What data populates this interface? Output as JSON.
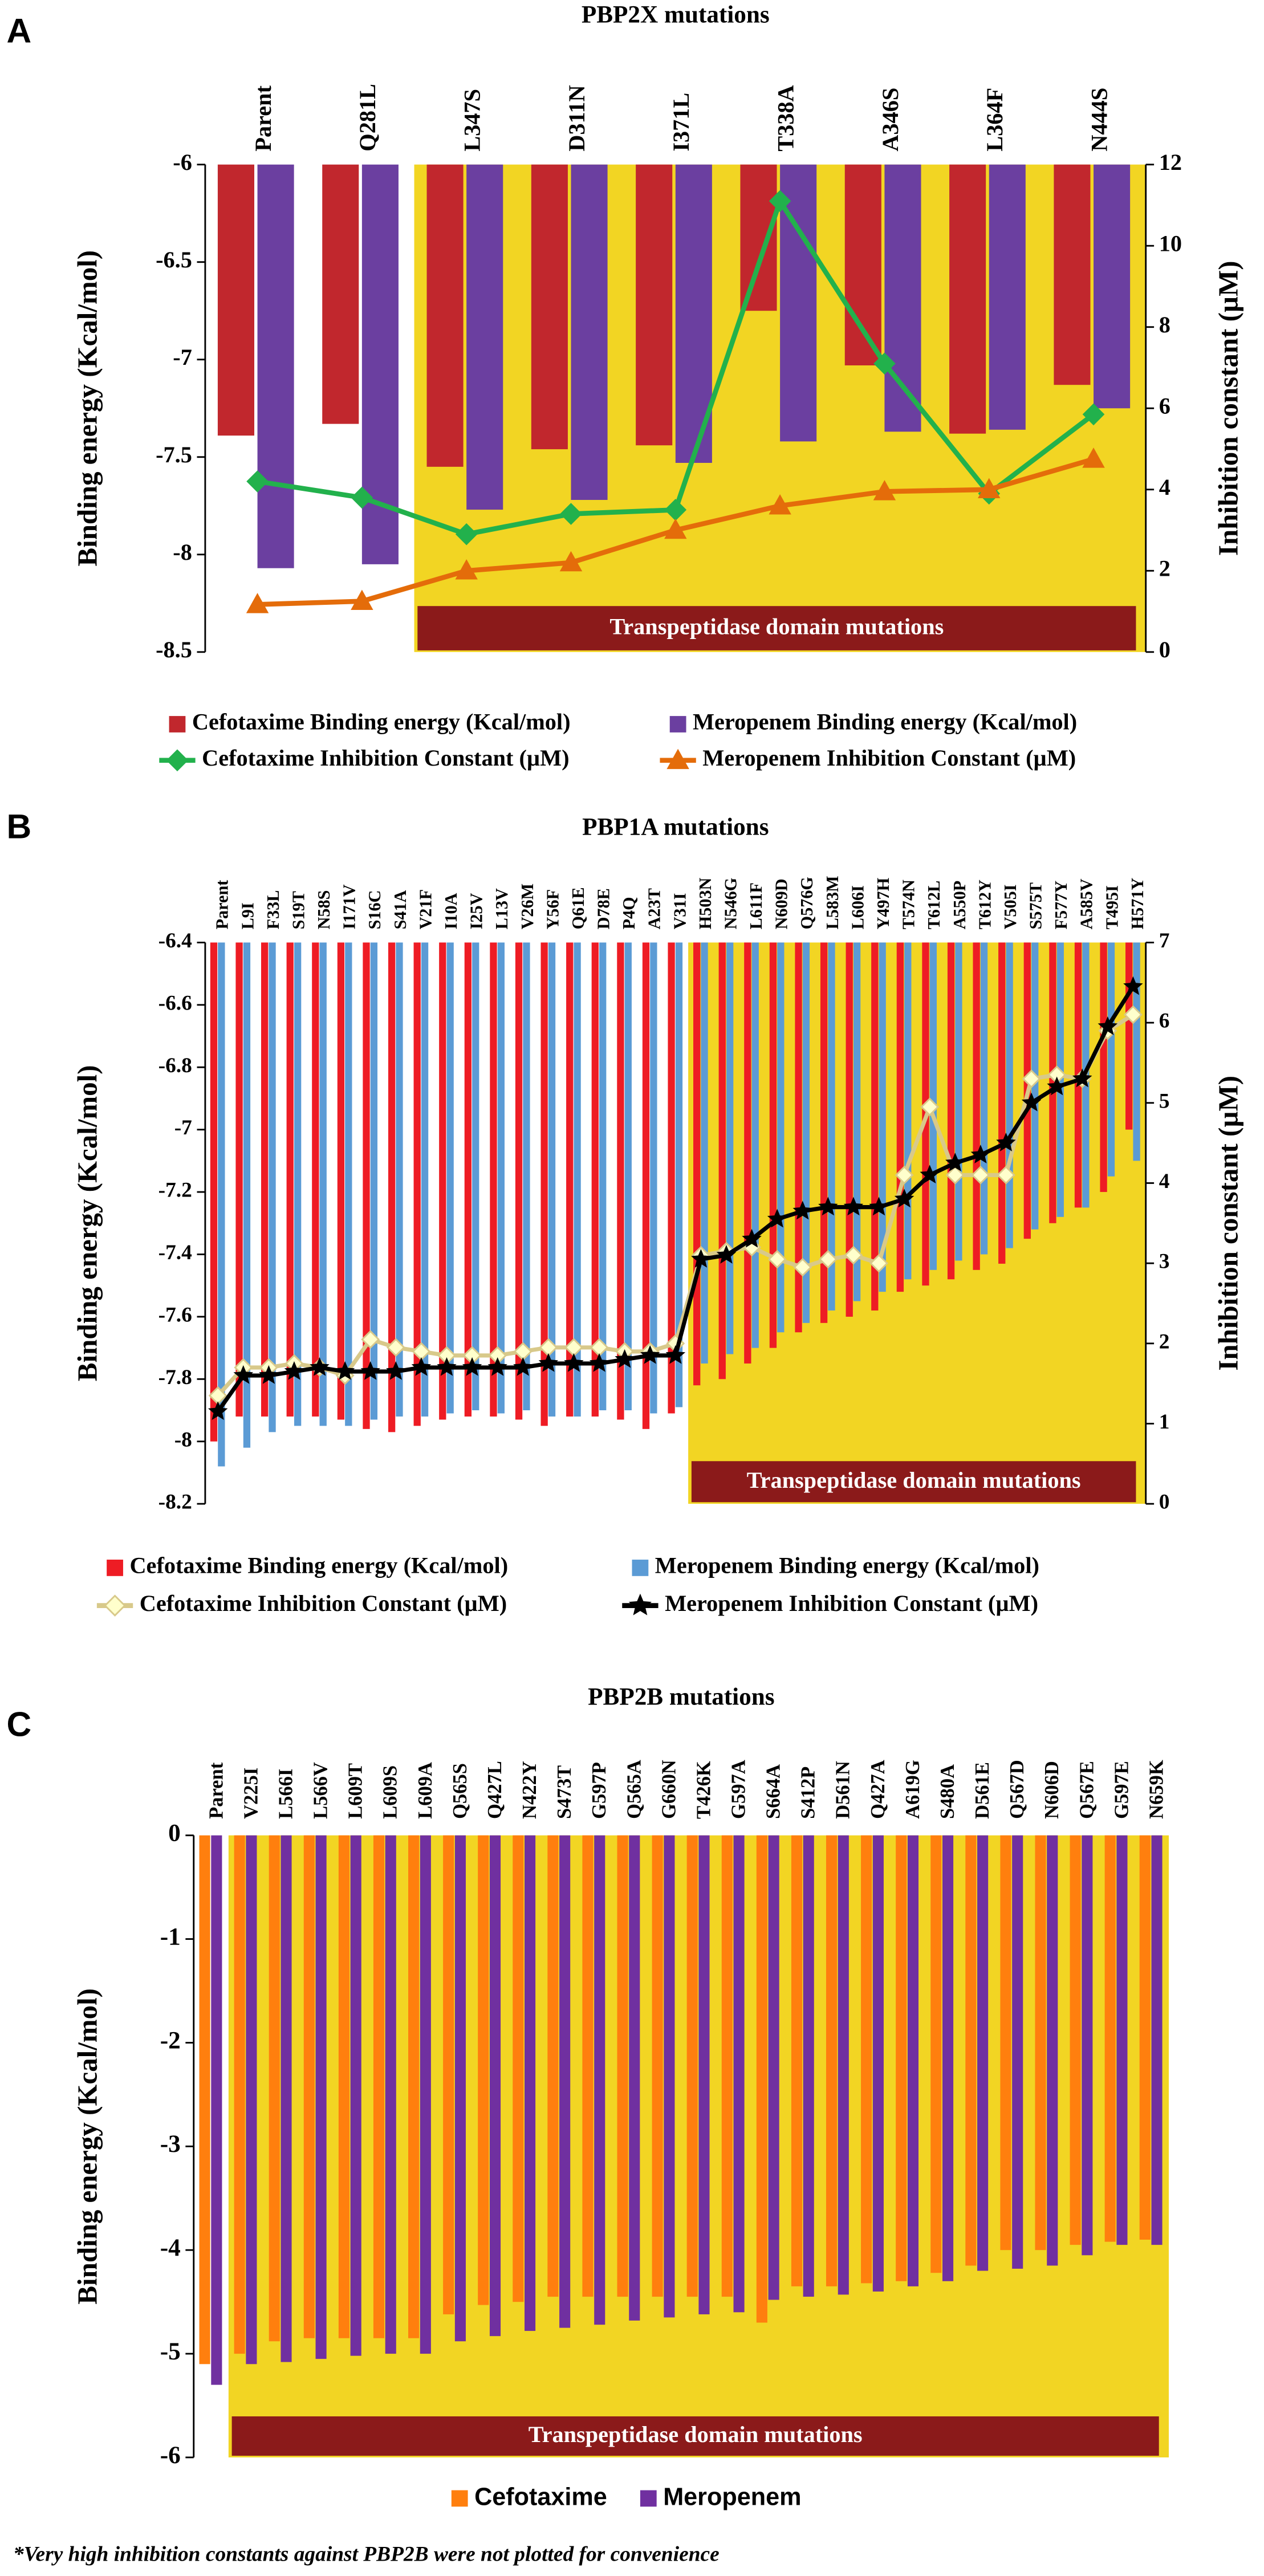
{
  "chart_data": [
    {
      "type": "combo",
      "label": "A",
      "title": "PBP2X mutations",
      "categories": [
        "Parent",
        "Q281L",
        "L347S",
        "D311N",
        "I371L",
        "T338A",
        "A346S",
        "L364F",
        "N444S"
      ],
      "y_label": "Binding energy (Kcal/mol)",
      "y2_label": "Inhibition constant (µM)",
      "ylim": [
        -8.5,
        -6
      ],
      "yticks": [
        -8.5,
        -8,
        -7.5,
        -7,
        -6.5,
        -6
      ],
      "y2lim": [
        0,
        12
      ],
      "y2ticks": [
        0,
        2,
        4,
        6,
        8,
        10,
        12
      ],
      "annotation": "Transpeptidase domain mutations",
      "highlight_from": "L347S",
      "highlight_color": "#f2d523",
      "annotation_color": "#8b1a1a",
      "series": [
        {
          "name": "Cefotaxime Binding energy (Kcal/mol)",
          "kind": "bar",
          "color": "#c1272d",
          "values": [
            -7.39,
            -7.33,
            -7.55,
            -7.46,
            -7.44,
            -6.75,
            -7.03,
            -7.38,
            -7.13
          ]
        },
        {
          "name": "Meropenem Binding energy (Kcal/mol)",
          "kind": "bar",
          "color": "#6b3fa0",
          "values": [
            -8.07,
            -8.05,
            -7.77,
            -7.72,
            -7.53,
            -7.42,
            -7.37,
            -7.36,
            -7.25
          ]
        },
        {
          "name": "Cefotaxime Inhibition Constant (µM)",
          "kind": "line",
          "axis": "y2",
          "marker": "diamond",
          "color": "#22b14c",
          "values": [
            4.2,
            3.8,
            2.9,
            3.4,
            3.5,
            11.1,
            7.1,
            3.9,
            5.85
          ]
        },
        {
          "name": "Meropenem Inhibition Constant (µM)",
          "kind": "line",
          "axis": "y2",
          "marker": "triangle",
          "color": "#e46c0a",
          "values": [
            1.17,
            1.25,
            2.0,
            2.2,
            3.0,
            3.6,
            3.95,
            4.0,
            4.75
          ]
        }
      ]
    },
    {
      "type": "combo",
      "label": "B",
      "title": "PBP1A mutations",
      "categories": [
        "Parent",
        "L9I",
        "F33L",
        "S19T",
        "N58S",
        "I171V",
        "S16C",
        "S41A",
        "V21F",
        "I10A",
        "I25V",
        "L13V",
        "V26M",
        "Y56F",
        "Q61E",
        "D78E",
        "P4Q",
        "A23T",
        "V31I",
        "H503N",
        "N546G",
        "L611F",
        "N609D",
        "Q576G",
        "L583M",
        "L606I",
        "Y497H",
        "T574N",
        "T612L",
        "A550P",
        "T612Y",
        "V505I",
        "S575T",
        "F577Y",
        "A585V",
        "T495I",
        "H571Y"
      ],
      "y_label": "Binding energy (Kcal/mol)",
      "y2_label": "Inhibition constant (µM)",
      "ylim": [
        -8.2,
        -6.4
      ],
      "yticks": [
        -8.2,
        -8,
        -7.8,
        -7.6,
        -7.4,
        -7.2,
        -7,
        -6.8,
        -6.6,
        -6.4
      ],
      "y2lim": [
        0,
        7
      ],
      "y2ticks": [
        0,
        1,
        2,
        3,
        4,
        5,
        6,
        7
      ],
      "annotation": "Transpeptidase domain mutations",
      "highlight_from": "H503N",
      "highlight_color": "#f2d523",
      "annotation_color": "#8b1a1a",
      "series": [
        {
          "name": "Cefotaxime Binding energy (Kcal/mol)",
          "kind": "bar",
          "color": "#ee1c24",
          "values": [
            -8.0,
            -7.92,
            -7.92,
            -7.92,
            -7.92,
            -7.93,
            -7.96,
            -7.97,
            -7.95,
            -7.93,
            -7.92,
            -7.92,
            -7.93,
            -7.95,
            -7.92,
            -7.92,
            -7.93,
            -7.96,
            -7.91,
            -7.82,
            -7.8,
            -7.75,
            -7.7,
            -7.65,
            -7.62,
            -7.6,
            -7.58,
            -7.52,
            -7.5,
            -7.48,
            -7.45,
            -7.43,
            -7.35,
            -7.3,
            -7.25,
            -7.2,
            -7.0
          ]
        },
        {
          "name": "Meropenem Binding energy (Kcal/mol)",
          "kind": "bar",
          "color": "#5b9bd5",
          "values": [
            -8.08,
            -8.02,
            -7.97,
            -7.95,
            -7.95,
            -7.95,
            -7.93,
            -7.92,
            -7.92,
            -7.91,
            -7.9,
            -7.91,
            -7.9,
            -7.92,
            -7.92,
            -7.9,
            -7.9,
            -7.91,
            -7.89,
            -7.75,
            -7.72,
            -7.7,
            -7.65,
            -7.62,
            -7.58,
            -7.55,
            -7.52,
            -7.48,
            -7.45,
            -7.42,
            -7.4,
            -7.38,
            -7.32,
            -7.28,
            -7.25,
            -7.15,
            -7.1
          ]
        },
        {
          "name": "Cefotaxime Inhibition Constant (µM)",
          "kind": "line",
          "axis": "y2",
          "marker": "diamond",
          "color": "#d8c98a",
          "fill": "#ffffcc",
          "values": [
            1.35,
            1.7,
            1.7,
            1.75,
            1.7,
            1.6,
            2.05,
            1.95,
            1.9,
            1.85,
            1.85,
            1.85,
            1.9,
            1.95,
            1.95,
            1.95,
            1.9,
            1.9,
            2.0,
            3.1,
            3.15,
            3.2,
            3.05,
            2.95,
            3.05,
            3.1,
            3.0,
            4.1,
            4.95,
            4.1,
            4.1,
            4.1,
            5.3,
            5.35,
            5.3,
            5.9,
            6.1
          ]
        },
        {
          "name": "Meropenem Inhibition Constant (µM)",
          "kind": "line",
          "axis": "y2",
          "marker": "star",
          "color": "#000000",
          "values": [
            1.15,
            1.6,
            1.6,
            1.65,
            1.7,
            1.65,
            1.65,
            1.65,
            1.7,
            1.7,
            1.7,
            1.7,
            1.7,
            1.75,
            1.75,
            1.75,
            1.8,
            1.85,
            1.85,
            3.05,
            3.1,
            3.3,
            3.55,
            3.65,
            3.7,
            3.7,
            3.7,
            3.8,
            4.1,
            4.25,
            4.35,
            4.5,
            5.0,
            5.2,
            5.3,
            5.95,
            6.45
          ]
        }
      ]
    },
    {
      "type": "bar",
      "label": "C",
      "title": "PBP2B mutations",
      "categories": [
        "Parent",
        "V225I",
        "L566I",
        "L566V",
        "L609T",
        "L609S",
        "L609A",
        "Q565S",
        "Q427L",
        "N422Y",
        "S473T",
        "G597P",
        "Q565A",
        "G660N",
        "T426K",
        "G597A",
        "S664A",
        "S412P",
        "D561N",
        "Q427A",
        "A619G",
        "S480A",
        "D561E",
        "Q567D",
        "N606D",
        "Q567E",
        "G597E",
        "N659K"
      ],
      "y_label": "Binding energy (Kcal/mol)",
      "ylim": [
        -6,
        0
      ],
      "yticks": [
        -6,
        -5,
        -4,
        -3,
        -2,
        -1,
        0
      ],
      "annotation": "Transpeptidase domain mutations",
      "highlight_from": "V225I",
      "highlight_color": "#f2d523",
      "annotation_color": "#8b1a1a",
      "series": [
        {
          "name": "Cefotaxime",
          "kind": "bar",
          "color": "#ff7f0e",
          "values": [
            -5.1,
            -5.0,
            -4.88,
            -4.85,
            -4.85,
            -4.85,
            -4.85,
            -4.62,
            -4.53,
            -4.5,
            -4.45,
            -4.45,
            -4.45,
            -4.45,
            -4.45,
            -4.45,
            -4.7,
            -4.35,
            -4.35,
            -4.32,
            -4.3,
            -4.22,
            -4.15,
            -4.0,
            -4.0,
            -3.95,
            -3.92,
            -3.9
          ]
        },
        {
          "name": "Meropenem",
          "kind": "bar",
          "color": "#7030a0",
          "values": [
            -5.3,
            -5.1,
            -5.08,
            -5.05,
            -5.02,
            -5.0,
            -5.0,
            -4.88,
            -4.83,
            -4.78,
            -4.75,
            -4.72,
            -4.68,
            -4.65,
            -4.62,
            -4.6,
            -4.48,
            -4.45,
            -4.43,
            -4.4,
            -4.35,
            -4.3,
            -4.2,
            -4.18,
            -4.15,
            -4.05,
            -3.95,
            -3.95
          ]
        }
      ]
    }
  ],
  "footnote": "*Very high inhibition constants against PBP2B were not plotted for convenience"
}
